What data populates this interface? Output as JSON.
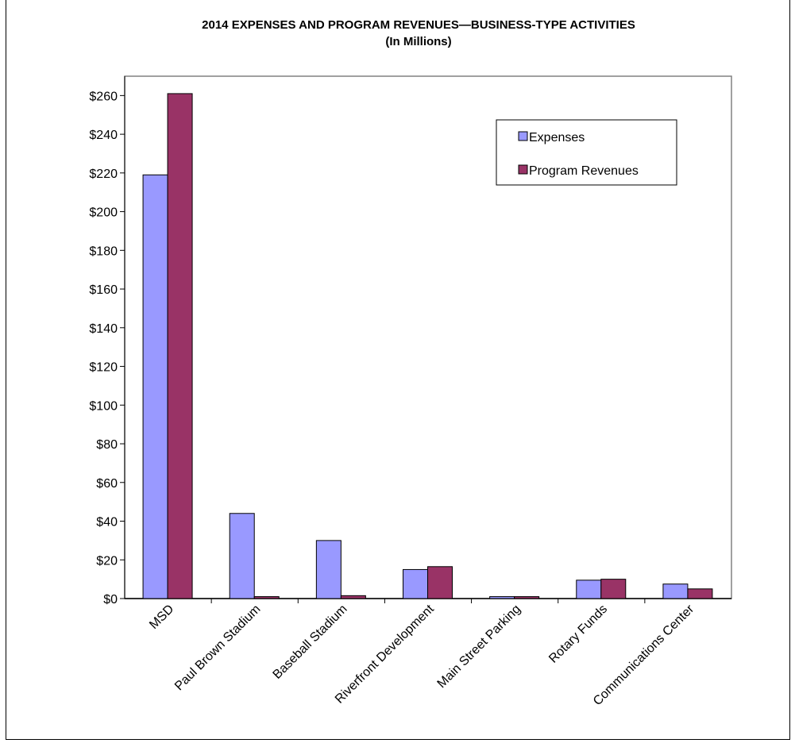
{
  "chart_data": {
    "type": "bar",
    "title": "2014 EXPENSES AND PROGRAM REVENUES—BUSINESS-TYPE ACTIVITIES",
    "subtitle": "(In Millions)",
    "categories": [
      "MSD",
      "Paul Brown Stadium",
      "Baseball Stadium",
      "Riverfront Development",
      "Main Street Parking",
      "Rotary Funds",
      "Communications Center"
    ],
    "series": [
      {
        "name": "Expenses",
        "values": [
          219,
          44,
          30,
          15,
          1,
          9.5,
          7.5
        ],
        "color": "#9999ff"
      },
      {
        "name": "Program Revenues",
        "values": [
          261,
          1,
          1.5,
          16.5,
          1,
          10,
          5
        ],
        "color": "#993366"
      }
    ],
    "ylim": [
      0,
      270
    ],
    "ytick_values": [
      0,
      20,
      40,
      60,
      80,
      100,
      120,
      140,
      160,
      180,
      200,
      220,
      240,
      260
    ],
    "ytick_labels": [
      "$0",
      "$20",
      "$40",
      "$60",
      "$80",
      "$100",
      "$120",
      "$140",
      "$160",
      "$180",
      "$200",
      "$220",
      "$240",
      "$260"
    ],
    "xlabel": "",
    "ylabel": "",
    "grid": false,
    "legend_position": "top-right",
    "plot_area_border": "#808080"
  }
}
